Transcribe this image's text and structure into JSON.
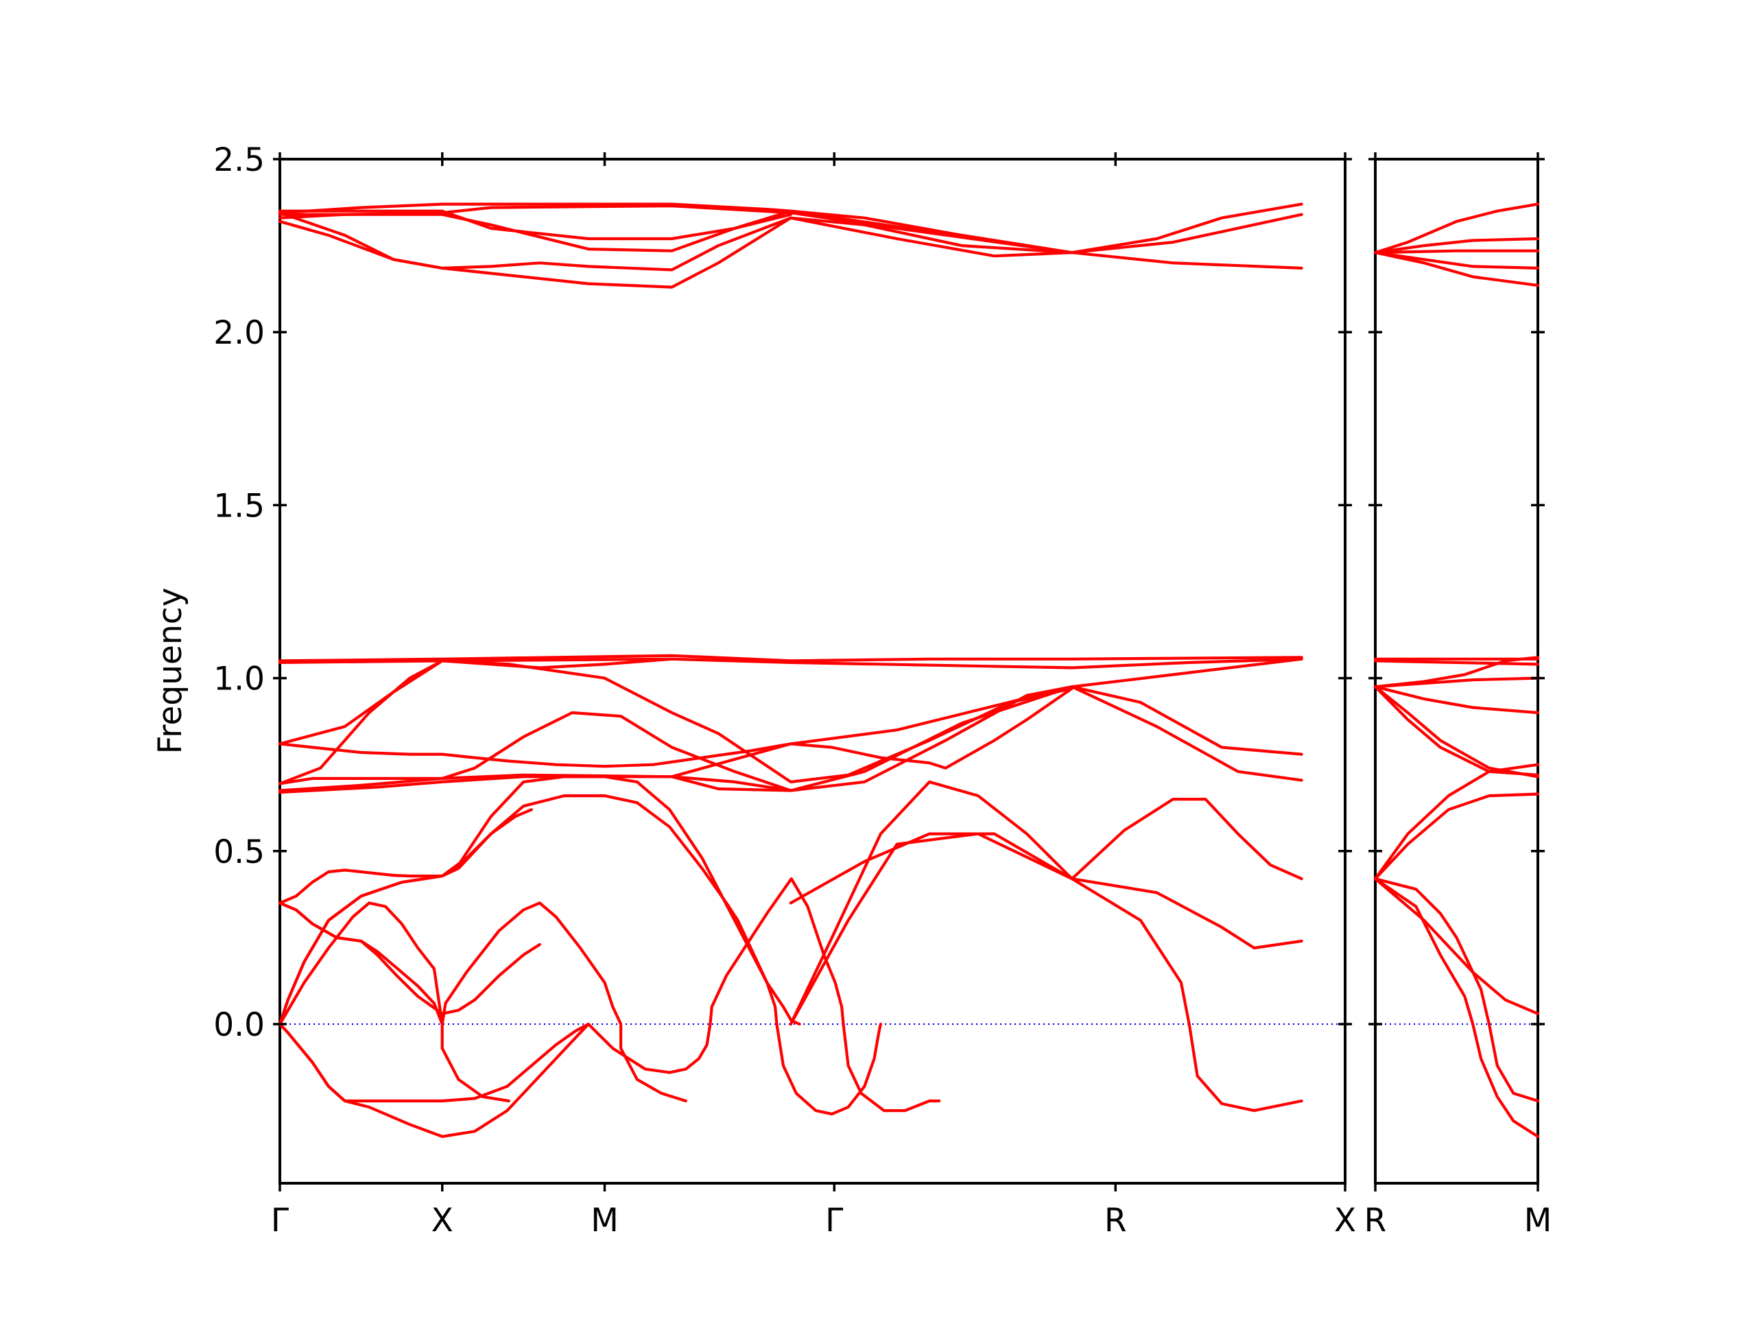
{
  "chart_data": {
    "type": "line",
    "ylabel": "Frequency",
    "ylim": [
      -0.46,
      2.5
    ],
    "yticks": [
      "0.0",
      "0.5",
      "1.0",
      "1.5",
      "2.0",
      "2.5"
    ],
    "yticks_values": [
      0.0,
      0.5,
      1.0,
      1.5,
      2.0,
      2.5
    ],
    "zero_line_color": "#0000ff",
    "band_color": "#ff0000",
    "grid": false,
    "panels": [
      {
        "path": [
          "Γ",
          "X",
          "M",
          "Γ",
          "R",
          "X"
        ],
        "segment_lengths": [
          1.0,
          1.0,
          1.414,
          1.732,
          1.414
        ],
        "bands": [
          [
            [
              0,
              0
            ],
            [
              0.05,
              -0.025
            ],
            [
              0.2,
              -0.11
            ],
            [
              0.3,
              -0.18
            ],
            [
              0.4,
              -0.222
            ],
            [
              0.6,
              -0.222
            ],
            [
              0.8,
              -0.222
            ],
            [
              1.0,
              -0.222
            ],
            [
              1.2,
              -0.215
            ],
            [
              1.4,
              -0.18
            ],
            [
              1.55,
              -0.12
            ],
            [
              1.7,
              -0.06
            ],
            [
              1.82,
              -0.02
            ],
            [
              1.9,
              0
            ]
          ],
          [
            [
              0,
              0
            ],
            [
              0.05,
              -0.025
            ],
            [
              0.2,
              -0.11
            ],
            [
              0.3,
              -0.18
            ],
            [
              0.4,
              -0.222
            ],
            [
              0.55,
              -0.24
            ],
            [
              0.8,
              -0.29
            ],
            [
              1.0,
              -0.325
            ],
            [
              1.2,
              -0.31
            ],
            [
              1.4,
              -0.25
            ],
            [
              1.6,
              -0.15
            ],
            [
              1.8,
              -0.05
            ],
            [
              1.9,
              0
            ],
            [
              2.05,
              -0.07
            ],
            [
              2.25,
              -0.13
            ],
            [
              2.4,
              -0.14
            ],
            [
              2.5,
              -0.13
            ],
            [
              2.58,
              -0.1
            ],
            [
              2.63,
              -0.06
            ],
            [
              2.65,
              0
            ],
            [
              2.66,
              0.05
            ],
            [
              2.75,
              0.14
            ],
            [
              3.0,
              0.32
            ],
            [
              3.15,
              0.42
            ],
            [
              3.25,
              0.34
            ],
            [
              3.35,
              0.2
            ],
            [
              3.42,
              0.12
            ],
            [
              3.46,
              0.05
            ],
            [
              3.47,
              0
            ],
            [
              3.5,
              -0.12
            ],
            [
              3.58,
              -0.2
            ],
            [
              3.72,
              -0.25
            ],
            [
              3.85,
              -0.25
            ],
            [
              4.0,
              -0.222
            ],
            [
              4.06,
              -0.222
            ]
          ],
          [
            [
              0,
              0
            ],
            [
              0.05,
              0.07
            ],
            [
              0.15,
              0.18
            ],
            [
              0.3,
              0.3
            ],
            [
              0.5,
              0.37
            ],
            [
              0.75,
              0.41
            ],
            [
              1.0,
              0.428
            ],
            [
              1.1,
              0.45
            ],
            [
              1.3,
              0.55
            ],
            [
              1.5,
              0.63
            ],
            [
              1.75,
              0.66
            ],
            [
              2.0,
              0.66
            ],
            [
              2.2,
              0.64
            ],
            [
              2.4,
              0.57
            ],
            [
              2.6,
              0.45
            ],
            [
              2.75,
              0.35
            ],
            [
              2.82,
              0.3
            ],
            [
              2.92,
              0.2
            ],
            [
              3.0,
              0.12
            ],
            [
              3.05,
              0.05
            ],
            [
              3.06,
              0
            ],
            [
              3.1,
              -0.12
            ],
            [
              3.18,
              -0.2
            ],
            [
              3.3,
              -0.25
            ],
            [
              3.4,
              -0.26
            ],
            [
              3.5,
              -0.24
            ],
            [
              3.6,
              -0.18
            ],
            [
              3.66,
              -0.1
            ],
            [
              3.69,
              -0.02
            ],
            [
              3.7,
              0
            ]
          ],
          [
            [
              0,
              0
            ],
            [
              0.05,
              0.07
            ],
            [
              0.15,
              0.18
            ],
            [
              0.3,
              0.3
            ],
            [
              0.5,
              0.37
            ],
            [
              0.75,
              0.41
            ],
            [
              1.0,
              0.428
            ],
            [
              1.1,
              0.46
            ],
            [
              1.3,
              0.6
            ],
            [
              1.5,
              0.7
            ],
            [
              1.75,
              0.715
            ],
            [
              2.0,
              0.715
            ],
            [
              2.2,
              0.7
            ],
            [
              2.4,
              0.62
            ],
            [
              2.6,
              0.48
            ],
            [
              2.8,
              0.3
            ],
            [
              3.0,
              0.12
            ],
            [
              3.1,
              0.05
            ],
            [
              3.15,
              0.01
            ],
            [
              3.2,
              0
            ]
          ],
          [
            [
              0,
              0
            ],
            [
              0.15,
              0.12
            ],
            [
              0.3,
              0.22
            ],
            [
              0.45,
              0.31
            ],
            [
              0.55,
              0.35
            ],
            [
              0.65,
              0.34
            ],
            [
              0.75,
              0.29
            ],
            [
              0.85,
              0.22
            ],
            [
              0.95,
              0.16
            ],
            [
              1.0,
              0.0
            ],
            [
              1.02,
              0.06
            ],
            [
              1.15,
              0.15
            ],
            [
              1.35,
              0.27
            ],
            [
              1.5,
              0.33
            ],
            [
              1.6,
              0.35
            ],
            [
              1.7,
              0.31
            ],
            [
              1.85,
              0.22
            ],
            [
              2.0,
              0.12
            ],
            [
              2.05,
              0.05
            ],
            [
              2.1,
              0.0
            ],
            [
              2.1,
              -0.07
            ],
            [
              2.2,
              -0.16
            ],
            [
              2.35,
              -0.2
            ],
            [
              2.5,
              -0.222
            ]
          ],
          [
            [
              0,
              0.35
            ],
            [
              0.1,
              0.37
            ],
            [
              0.2,
              0.41
            ],
            [
              0.3,
              0.44
            ],
            [
              0.4,
              0.445
            ],
            [
              0.5,
              0.44
            ],
            [
              0.7,
              0.43
            ],
            [
              0.8,
              0.428
            ],
            [
              1.0,
              0.428
            ],
            [
              1.15,
              0.48
            ],
            [
              1.3,
              0.55
            ],
            [
              1.45,
              0.6
            ],
            [
              1.55,
              0.62
            ]
          ],
          [
            [
              0,
              0.35
            ],
            [
              0.1,
              0.33
            ],
            [
              0.2,
              0.29
            ],
            [
              0.35,
              0.25
            ],
            [
              0.5,
              0.24
            ],
            [
              0.6,
              0.21
            ],
            [
              0.7,
              0.17
            ],
            [
              0.85,
              0.11
            ],
            [
              0.95,
              0.06
            ],
            [
              1.0,
              0.0
            ],
            [
              1.0,
              -0.07
            ],
            [
              1.1,
              -0.16
            ],
            [
              1.25,
              -0.21
            ],
            [
              1.41,
              -0.222
            ]
          ],
          [
            [
              0,
              0.35
            ],
            [
              0.1,
              0.33
            ],
            [
              0.2,
              0.29
            ],
            [
              0.35,
              0.25
            ],
            [
              0.5,
              0.24
            ],
            [
              0.6,
              0.2
            ],
            [
              0.72,
              0.14
            ],
            [
              0.85,
              0.08
            ],
            [
              1.0,
              0.03
            ],
            [
              1.1,
              0.04
            ],
            [
              1.2,
              0.07
            ],
            [
              1.35,
              0.14
            ],
            [
              1.5,
              0.2
            ],
            [
              1.6,
              0.23
            ]
          ],
          [
            [
              0,
              0.81
            ],
            [
              0.2,
              0.8
            ],
            [
              0.5,
              0.785
            ],
            [
              0.8,
              0.78
            ],
            [
              1.0,
              0.78
            ],
            [
              1.2,
              0.77
            ],
            [
              1.414,
              0.76
            ],
            [
              1.7,
              0.75
            ],
            [
              2.0,
              0.745
            ],
            [
              2.3,
              0.75
            ],
            [
              2.6,
              0.77
            ],
            [
              2.9,
              0.79
            ],
            [
              3.146,
              0.81
            ],
            [
              3.4,
              0.8
            ],
            [
              3.7,
              0.77
            ],
            [
              4.0,
              0.755
            ],
            [
              4.1,
              0.74
            ],
            [
              4.4,
              0.82
            ],
            [
              4.6,
              0.88
            ],
            [
              4.878,
              0.97
            ]
          ]
        ]
      },
      {
        "path": [
          "R",
          "M"
        ],
        "segment_lengths": [
          1.0
        ],
        "bands": [
          [
            [
              0,
              2.23
            ],
            [
              0.2,
              2.26
            ],
            [
              0.5,
              2.32
            ],
            [
              0.75,
              2.35
            ],
            [
              1.0,
              2.37
            ]
          ],
          [
            [
              0,
              2.23
            ],
            [
              0.3,
              2.25
            ],
            [
              0.6,
              2.265
            ],
            [
              1.0,
              2.27
            ]
          ],
          [
            [
              0,
              2.23
            ],
            [
              0.5,
              2.235
            ],
            [
              1.0,
              2.235
            ]
          ],
          [
            [
              0,
              2.23
            ],
            [
              0.3,
              2.21
            ],
            [
              0.6,
              2.19
            ],
            [
              1.0,
              2.185
            ]
          ],
          [
            [
              0,
              2.23
            ],
            [
              0.3,
              2.2
            ],
            [
              0.6,
              2.16
            ],
            [
              1.0,
              2.135
            ]
          ],
          [
            [
              0,
              1.055
            ],
            [
              1.0,
              1.055
            ]
          ],
          [
            [
              0,
              1.05
            ],
            [
              1.0,
              1.04
            ]
          ],
          [
            [
              0,
              0.975
            ],
            [
              0.3,
              0.985
            ],
            [
              0.6,
              0.995
            ],
            [
              1.0,
              1.0
            ]
          ],
          [
            [
              0,
              0.975
            ],
            [
              0.3,
              0.94
            ],
            [
              0.6,
              0.915
            ],
            [
              1.0,
              0.9
            ]
          ],
          [
            [
              0,
              0.975
            ],
            [
              0.2,
              0.9
            ],
            [
              0.4,
              0.82
            ],
            [
              0.7,
              0.74
            ],
            [
              1.0,
              0.715
            ]
          ],
          [
            [
              0,
              0.975
            ],
            [
              0.2,
              0.88
            ],
            [
              0.4,
              0.8
            ],
            [
              0.7,
              0.73
            ],
            [
              1.0,
              0.72
            ]
          ],
          [
            [
              0,
              0.975
            ],
            [
              0.3,
              0.99
            ],
            [
              0.55,
              1.01
            ],
            [
              0.8,
              1.05
            ],
            [
              1.0,
              1.06
            ]
          ],
          [
            [
              0,
              0.42
            ],
            [
              0.2,
              0.52
            ],
            [
              0.45,
              0.62
            ],
            [
              0.7,
              0.66
            ],
            [
              1.0,
              0.665
            ]
          ],
          [
            [
              0,
              0.42
            ],
            [
              0.2,
              0.55
            ],
            [
              0.45,
              0.66
            ],
            [
              0.7,
              0.73
            ],
            [
              1.0,
              0.75
            ]
          ],
          [
            [
              0,
              0.42
            ],
            [
              0.25,
              0.39
            ],
            [
              0.4,
              0.32
            ],
            [
              0.5,
              0.25
            ],
            [
              0.65,
              0.1
            ],
            [
              0.7,
              0.0
            ],
            [
              0.75,
              -0.12
            ],
            [
              0.85,
              -0.2
            ],
            [
              1.0,
              -0.222
            ]
          ],
          [
            [
              0,
              0.42
            ],
            [
              0.25,
              0.34
            ],
            [
              0.4,
              0.2
            ],
            [
              0.55,
              0.08
            ],
            [
              0.6,
              0.0
            ],
            [
              0.65,
              -0.1
            ],
            [
              0.75,
              -0.21
            ],
            [
              0.85,
              -0.28
            ],
            [
              1.0,
              -0.325
            ]
          ],
          [
            [
              0,
              0.42
            ],
            [
              0.3,
              0.3
            ],
            [
              0.6,
              0.15
            ],
            [
              0.8,
              0.07
            ],
            [
              1.0,
              0.03
            ]
          ]
        ]
      }
    ]
  }
}
